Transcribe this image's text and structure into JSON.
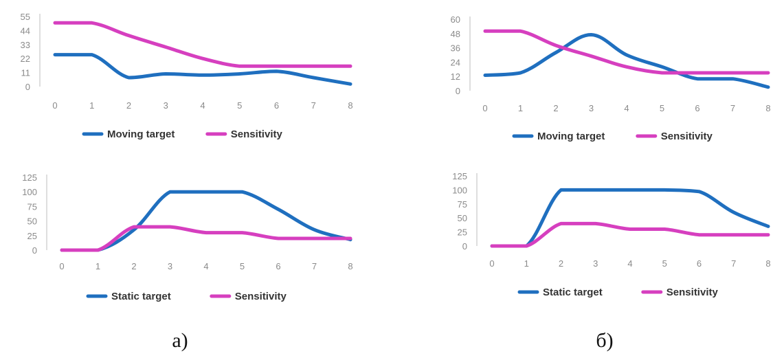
{
  "colors": {
    "blue": "#1f6fbf",
    "magenta": "#d63fbf"
  },
  "panel_labels": [
    "а)",
    "б)"
  ],
  "chart_data": [
    {
      "type": "line",
      "panel": "а)",
      "x": [
        0,
        1,
        2,
        3,
        4,
        5,
        6,
        7,
        8
      ],
      "x_tick_labels": [
        "0",
        "1",
        "2",
        "3",
        "4",
        "5",
        "6",
        "7",
        "8"
      ],
      "y_ticks": [
        0,
        11,
        22,
        33,
        44,
        55
      ],
      "ylim": [
        0,
        55
      ],
      "series": [
        {
          "name": "Moving target",
          "color": "#1f6fbf",
          "values": [
            25,
            25,
            7,
            10,
            9,
            10,
            12,
            7,
            2
          ]
        },
        {
          "name": "Sensitivity",
          "color": "#d63fbf",
          "values": [
            50,
            50,
            40,
            31,
            22,
            16,
            16,
            16,
            16
          ]
        }
      ],
      "legend": "bottom"
    },
    {
      "type": "line",
      "panel": "а)",
      "x": [
        0,
        1,
        2,
        3,
        4,
        5,
        6,
        7,
        8
      ],
      "x_tick_labels": [
        "0",
        "1",
        "2",
        "3",
        "4",
        "5",
        "6",
        "7",
        "8"
      ],
      "y_ticks": [
        0,
        25,
        50,
        75,
        100,
        125
      ],
      "ylim": [
        0,
        125
      ],
      "series": [
        {
          "name": "Static target",
          "color": "#1f6fbf",
          "values": [
            0,
            0,
            35,
            100,
            100,
            100,
            70,
            35,
            18
          ]
        },
        {
          "name": "Sensitivity",
          "color": "#d63fbf",
          "values": [
            0,
            0,
            40,
            40,
            30,
            30,
            20,
            20,
            20
          ]
        }
      ],
      "legend": "bottom"
    },
    {
      "type": "line",
      "panel": "б)",
      "x": [
        0,
        1,
        2,
        3,
        4,
        5,
        6,
        7,
        8
      ],
      "x_tick_labels": [
        "0",
        "1",
        "2",
        "3",
        "4",
        "5",
        "6",
        "7",
        "8"
      ],
      "y_ticks": [
        0,
        12,
        24,
        36,
        48,
        60
      ],
      "ylim": [
        0,
        60
      ],
      "series": [
        {
          "name": "Moving target",
          "color": "#1f6fbf",
          "values": [
            13,
            15,
            32,
            47,
            30,
            20,
            10,
            10,
            3
          ]
        },
        {
          "name": "Sensitivity",
          "color": "#d63fbf",
          "values": [
            50,
            50,
            38,
            29,
            20,
            15,
            15,
            15,
            15
          ]
        }
      ],
      "legend": "bottom"
    },
    {
      "type": "line",
      "panel": "б)",
      "x": [
        0,
        1,
        2,
        3,
        4,
        5,
        6,
        7,
        8
      ],
      "x_tick_labels": [
        "0",
        "1",
        "2",
        "3",
        "4",
        "5",
        "6",
        "7",
        "8"
      ],
      "y_ticks": [
        0,
        25,
        50,
        75,
        100,
        125
      ],
      "ylim": [
        0,
        125
      ],
      "series": [
        {
          "name": "Static target",
          "color": "#1f6fbf",
          "values": [
            0,
            0,
            100,
            100,
            100,
            100,
            97,
            60,
            35
          ]
        },
        {
          "name": "Sensitivity",
          "color": "#d63fbf",
          "values": [
            0,
            0,
            40,
            40,
            30,
            30,
            20,
            20,
            20
          ]
        }
      ],
      "legend": "bottom"
    }
  ]
}
